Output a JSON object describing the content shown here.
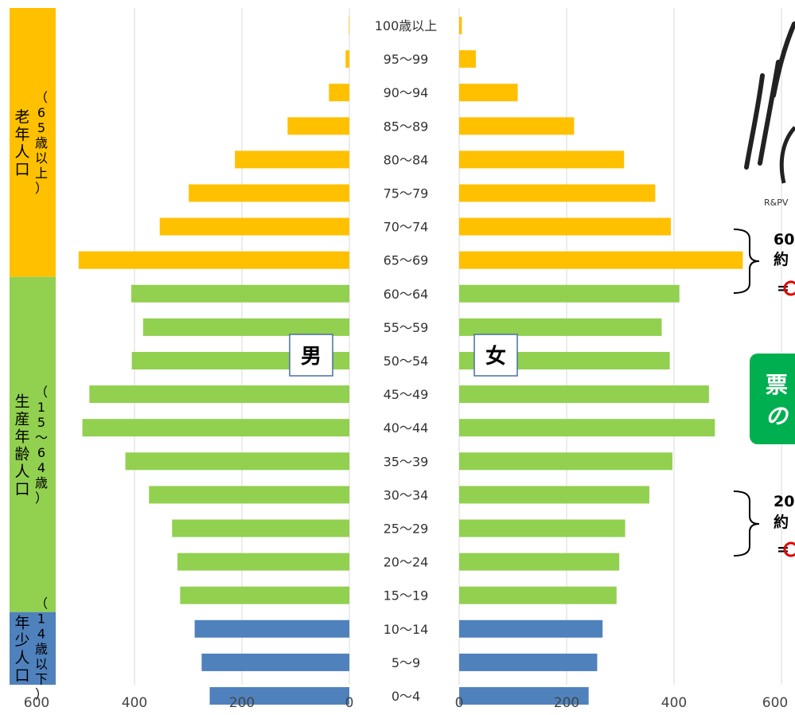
{
  "chart_data": {
    "type": "bar",
    "subtype": "population-pyramid",
    "orientation": "horizontal",
    "categories": [
      "0～4",
      "5～9",
      "10～14",
      "15～19",
      "20～24",
      "25～29",
      "30～34",
      "35～39",
      "40～44",
      "45～49",
      "50～54",
      "55～59",
      "60～64",
      "65～69",
      "70～74",
      "75～79",
      "80～84",
      "85～89",
      "90～94",
      "95～99",
      "100歳以上"
    ],
    "series": [
      {
        "name": "男",
        "values": [
          260,
          275,
          288,
          315,
          320,
          330,
          373,
          417,
          497,
          484,
          405,
          384,
          406,
          504,
          353,
          299,
          213,
          115,
          38,
          7,
          1
        ]
      },
      {
        "name": "女",
        "values": [
          241,
          257,
          267,
          293,
          298,
          309,
          354,
          397,
          476,
          465,
          392,
          377,
          410,
          528,
          394,
          365,
          307,
          214,
          109,
          31,
          5
        ]
      }
    ],
    "category_colors": [
      "#4f81bd",
      "#4f81bd",
      "#4f81bd",
      "#92d050",
      "#92d050",
      "#92d050",
      "#92d050",
      "#92d050",
      "#92d050",
      "#92d050",
      "#92d050",
      "#92d050",
      "#92d050",
      "#ffc000",
      "#ffc000",
      "#ffc000",
      "#ffc000",
      "#ffc000",
      "#ffc000",
      "#ffc000",
      "#ffc000"
    ],
    "x_left": {
      "ticks": [
        "600",
        "400",
        "200",
        "0"
      ],
      "range": [
        0,
        600
      ]
    },
    "x_right": {
      "ticks": [
        "0",
        "200",
        "400",
        "600"
      ],
      "range": [
        0,
        600
      ]
    },
    "grid": true,
    "age_groups": [
      {
        "label": "老年人口",
        "sub": "（65歳以上）",
        "color": "#ffc000",
        "from": 13,
        "to": 20
      },
      {
        "label": "生産年齢人口",
        "sub": "（15～64歳）",
        "color": "#92d050",
        "from": 3,
        "to": 12
      },
      {
        "label": "年少人口",
        "sub": "（14歳以下）",
        "color": "#4f81bd",
        "from": 0,
        "to": 2
      }
    ],
    "annotations": {
      "male_box": "男",
      "female_box": "女",
      "brace1_line1": "60",
      "brace1_line2": "約",
      "brace1_line3": "=",
      "green_box_line1": "票",
      "green_box_line2": "の",
      "brace2_line1": "20",
      "brace2_line2": "約",
      "brace2_line3": "=",
      "logo_text": "R&PV"
    }
  }
}
